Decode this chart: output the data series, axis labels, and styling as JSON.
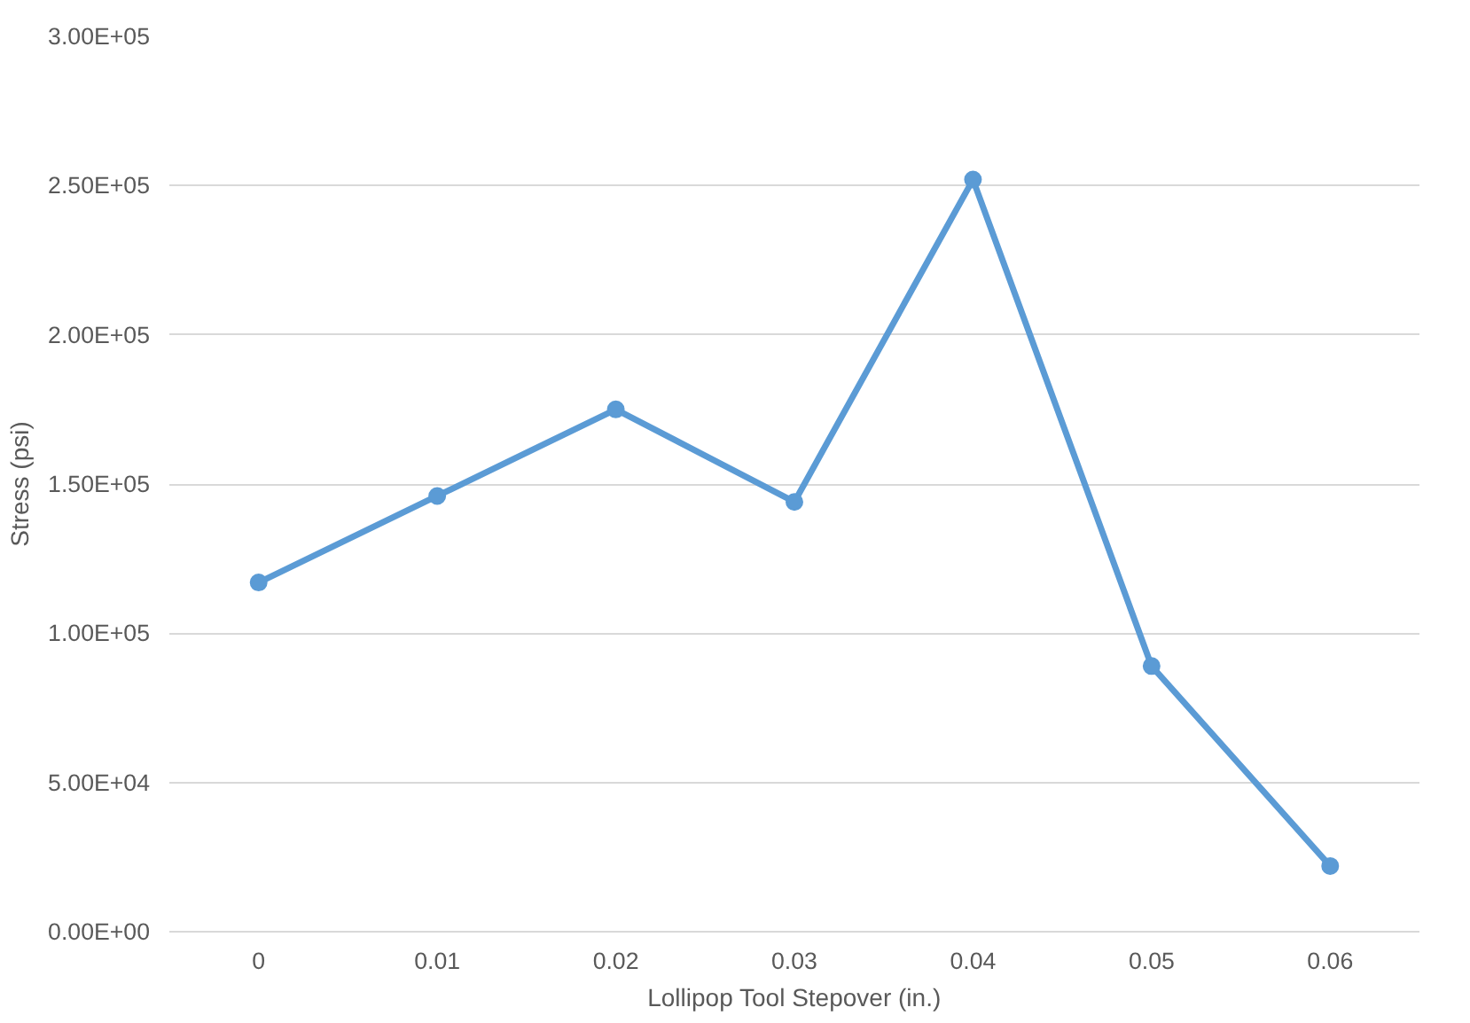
{
  "chart_data": {
    "type": "line",
    "xlabel": "Lollipop Tool Stepover (in.)",
    "ylabel": "Stress (psi)",
    "categories": [
      "0",
      "0.01",
      "0.02",
      "0.03",
      "0.04",
      "0.05",
      "0.06"
    ],
    "series": [
      {
        "color": "#5b9bd5",
        "values": [
          117000,
          146000,
          175000,
          144000,
          252000,
          89000,
          22000
        ]
      }
    ],
    "ylim": [
      0,
      300000
    ],
    "yticks": [
      {
        "value": 0,
        "label": "0.00E+00"
      },
      {
        "value": 50000,
        "label": "5.00E+04"
      },
      {
        "value": 100000,
        "label": "1.00E+05"
      },
      {
        "value": 150000,
        "label": "1.50E+05"
      },
      {
        "value": 200000,
        "label": "2.00E+05"
      },
      {
        "value": 250000,
        "label": "2.50E+05"
      },
      {
        "value": 300000,
        "label": "3.00E+05"
      }
    ],
    "grid": "y",
    "marker": "circle",
    "line_style": "solid"
  }
}
